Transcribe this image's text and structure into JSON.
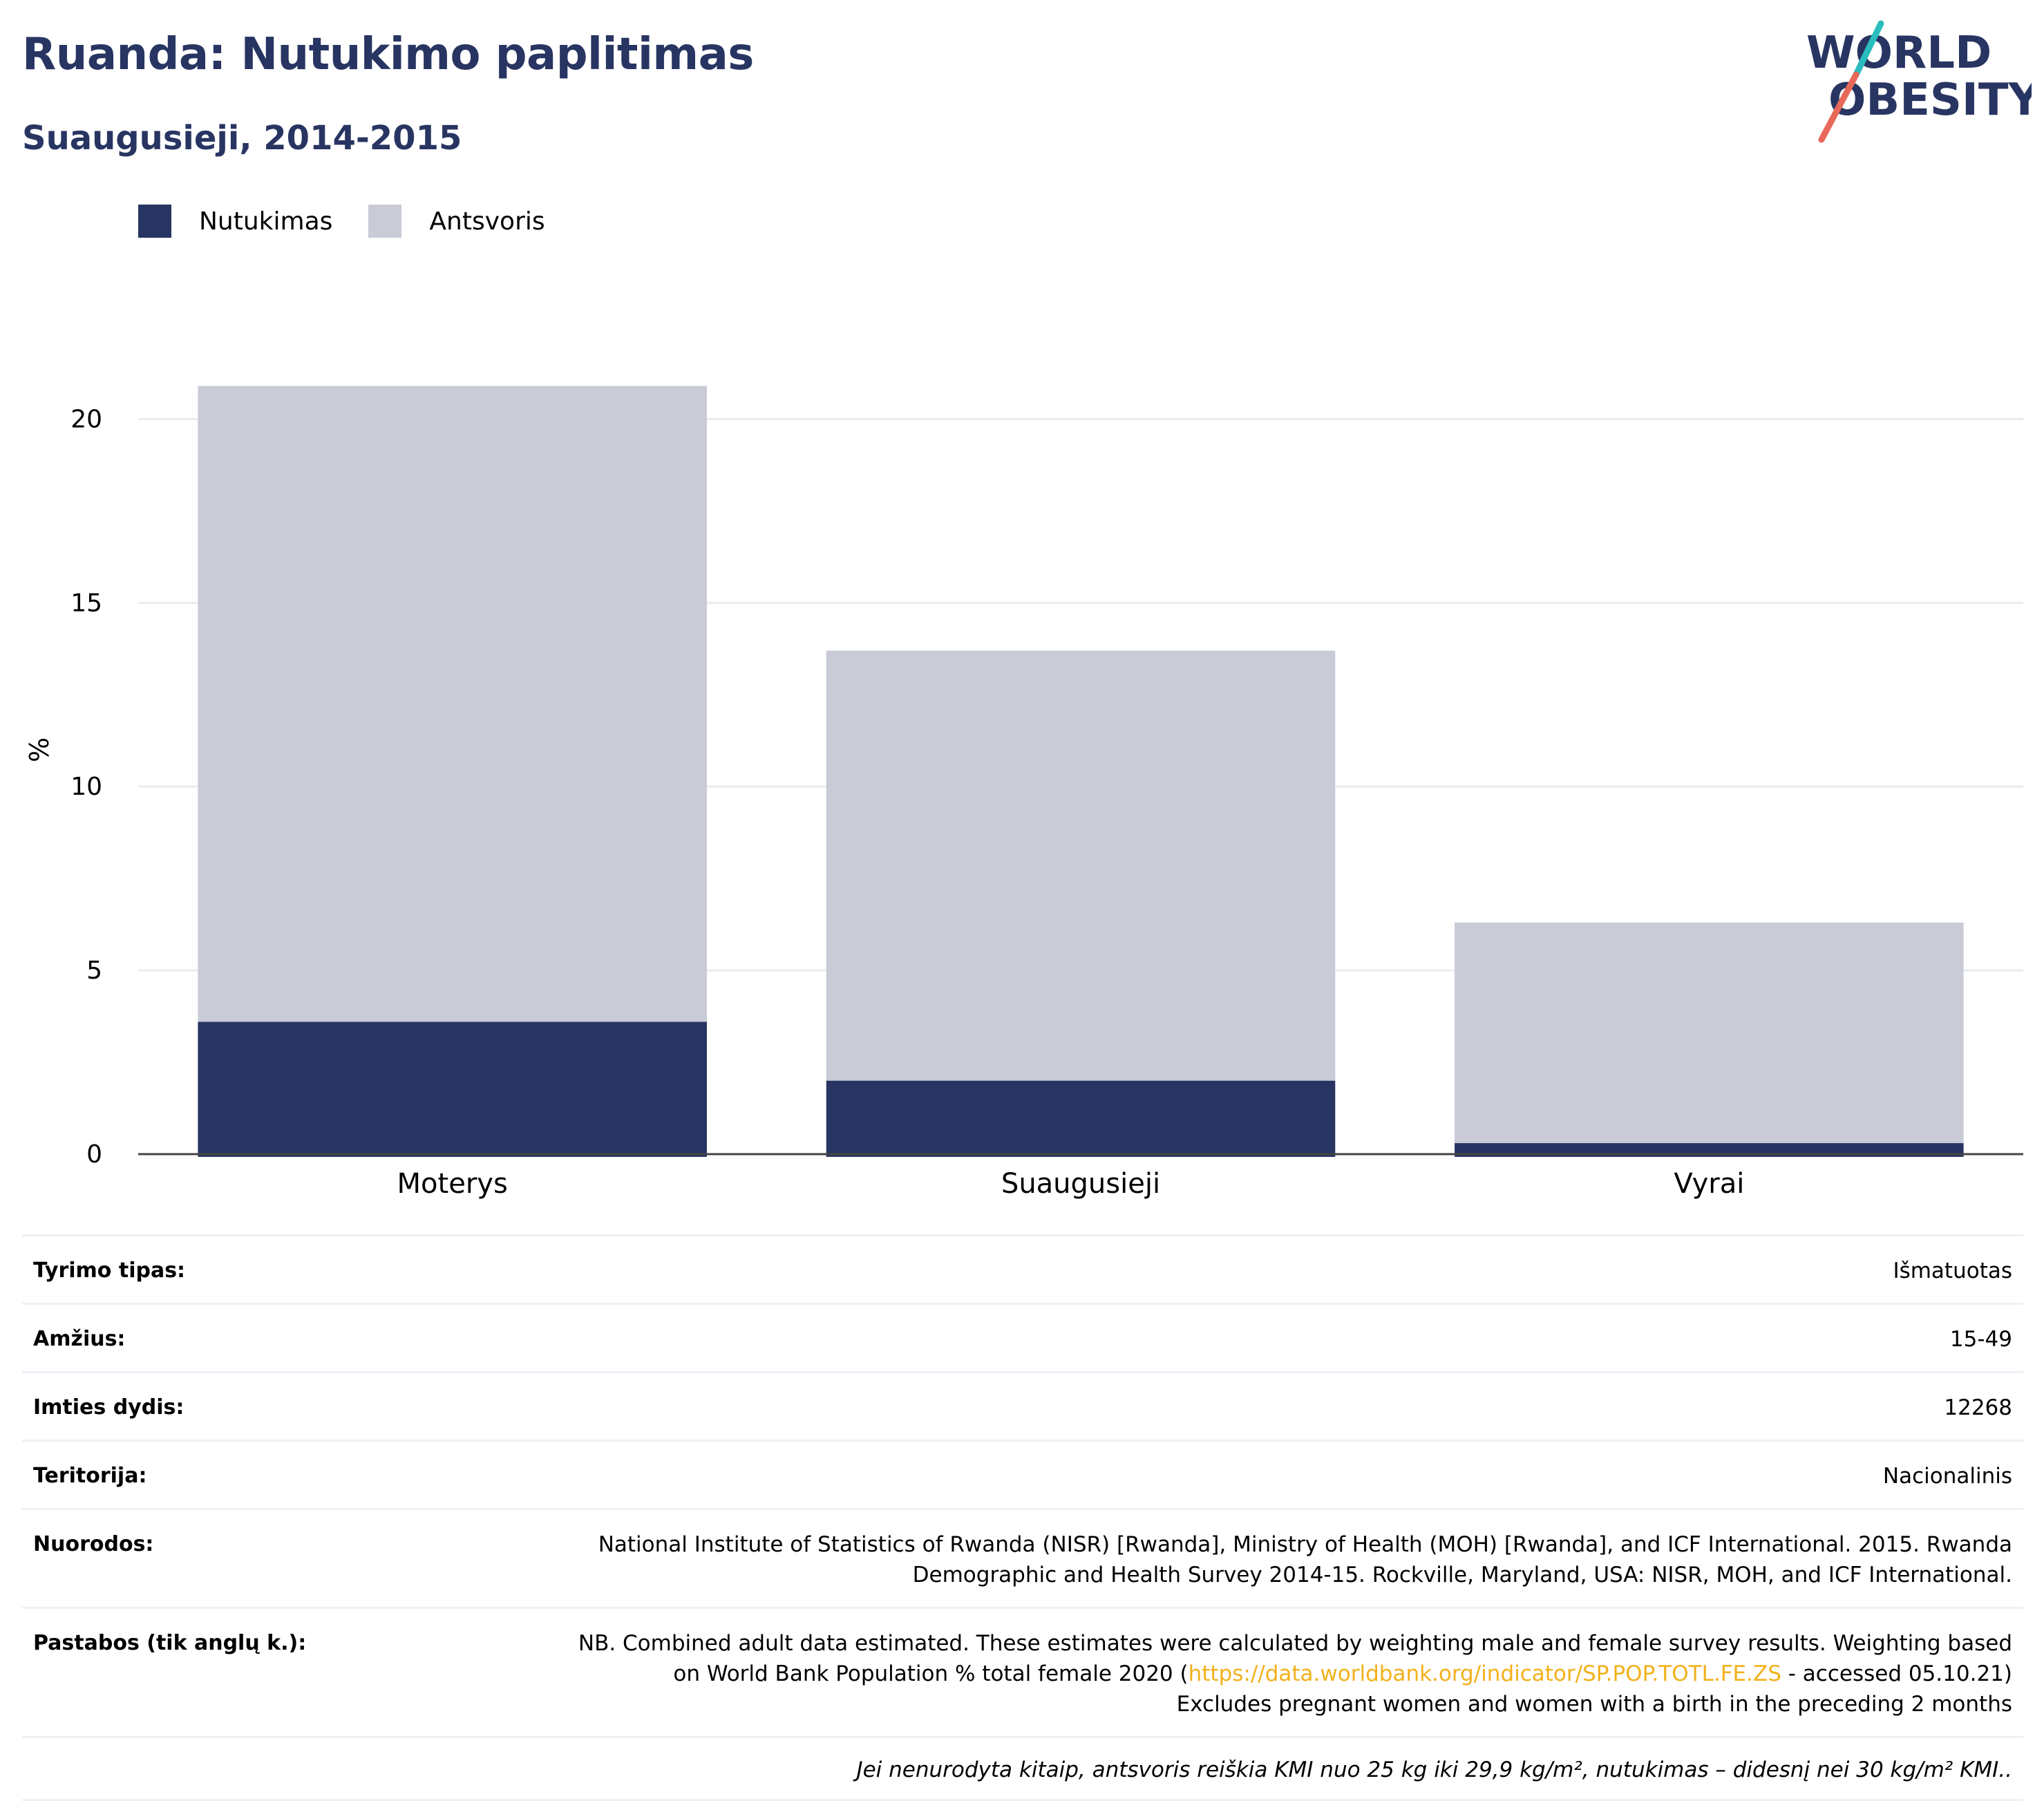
{
  "header": {
    "title": "Ruanda: Nutukimo paplitimas",
    "subtitle": "Suaugusieji, 2014-2015"
  },
  "logo": {
    "line1": "WORLD",
    "line2": "OBESITY",
    "text_color": "#283562",
    "slash_color_top": "#2bbdbd",
    "slash_color_bottom": "#e8695a"
  },
  "legend": [
    {
      "label": "Nutukimas",
      "color": "#283562"
    },
    {
      "label": "Antsvoris",
      "color": "#c9cbd7"
    }
  ],
  "chart_data": {
    "type": "bar",
    "stacked": true,
    "categories": [
      "Moterys",
      "Suaugusieji",
      "Vyrai"
    ],
    "series": [
      {
        "name": "Nutukimas",
        "color": "#283562",
        "values": [
          3.6,
          2.0,
          0.3
        ]
      },
      {
        "name": "Antsvoris",
        "color": "#c9cbd7",
        "values": [
          17.3,
          11.7,
          6.0
        ]
      }
    ],
    "ylabel": "%",
    "ylim": [
      0,
      22
    ],
    "yticks": [
      0,
      5,
      10,
      15,
      20
    ],
    "grid": true,
    "legend_position": "top-left"
  },
  "details": {
    "rows": [
      {
        "label": "Tyrimo tipas:",
        "value": "Išmatuotas"
      },
      {
        "label": "Amžius:",
        "value": "15-49"
      },
      {
        "label": "Imties dydis:",
        "value": "12268"
      },
      {
        "label": "Teritorija:",
        "value": "Nacionalinis"
      },
      {
        "label": "Nuorodos:",
        "value": "National Institute of Statistics of Rwanda (NISR) [Rwanda], Ministry of Health (MOH) [Rwanda], and ICF International. 2015. Rwanda Demographic and Health Survey 2014-15. Rockville, Maryland, USA: NISR, MOH, and ICF International."
      }
    ],
    "notes": {
      "label": "Pastabos (tik anglų k.):",
      "text_before": "NB. Combined adult data estimated. These estimates were calculated by weighting male and female survey results. Weighting based on World Bank Population % total female 2020 (",
      "link_text": "https://data.worldbank.org/indicator/SP.POP.TOTL.FE.ZS",
      "text_after": " - accessed 05.10.21)",
      "line2": "Excludes pregnant women and women with a birth in the preceding 2 months"
    },
    "footnote": "Jei nenurodyta kitaip, antsvoris reiškia KMI nuo 25 kg iki 29,9 kg/m², nutukimas – didesnį nei 30 kg/m² KMI.."
  }
}
